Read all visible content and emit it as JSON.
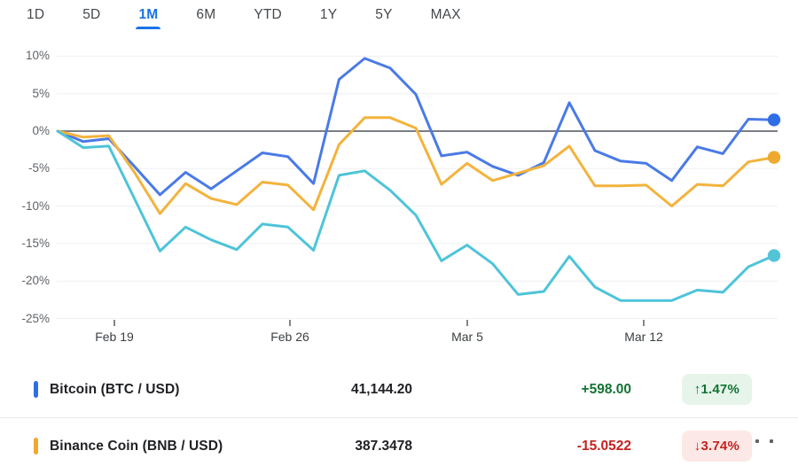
{
  "tabs": {
    "items": [
      {
        "label": "1D",
        "selected": false
      },
      {
        "label": "5D",
        "selected": false
      },
      {
        "label": "1M",
        "selected": true
      },
      {
        "label": "6M",
        "selected": false
      },
      {
        "label": "YTD",
        "selected": false
      },
      {
        "label": "1Y",
        "selected": false
      },
      {
        "label": "5Y",
        "selected": false
      },
      {
        "label": "MAX",
        "selected": false
      }
    ]
  },
  "chart": {
    "y_ticks": [
      "10%",
      "5%",
      "0%",
      "-5%",
      "-10%",
      "-15%",
      "-20%",
      "-25%"
    ],
    "x_ticks": [
      "Feb 19",
      "Feb 26",
      "Mar 5",
      "Mar 12"
    ]
  },
  "chart_data": {
    "type": "line",
    "unit": "percent change over 1M period",
    "title": "",
    "x_axis": {
      "tick_labels": [
        "Feb 19",
        "Feb 26",
        "Mar 5",
        "Mar 12"
      ]
    },
    "y_axis": {
      "tick_labels": [
        "10%",
        "5%",
        "0%",
        "-5%",
        "-10%",
        "-15%",
        "-20%",
        "-25%"
      ],
      "min": -25,
      "max": 10,
      "zero_line": true
    },
    "legend_position": "bottom-table",
    "grid": true,
    "series": [
      {
        "name": "Bitcoin (BTC / USD)",
        "color": "#4a7ae6",
        "dot_color": "#2e6fe6",
        "values": [
          0,
          -1.4,
          -1.0,
          -4.7,
          -8.5,
          -5.5,
          -7.7,
          -5.3,
          -2.9,
          -3.4,
          -7.0,
          6.9,
          9.7,
          8.4,
          4.9,
          -3.3,
          -2.8,
          -4.7,
          -5.9,
          -4.2,
          3.8,
          -2.6,
          -4.0,
          -4.3,
          -6.6,
          -2.1,
          -3.0,
          1.6,
          1.5
        ]
      },
      {
        "name": "Binance Coin (BNB / USD)",
        "color": "#f3b33d",
        "dot_color": "#efa92d",
        "values": [
          0,
          -0.8,
          -0.6,
          -5.5,
          -11.0,
          -7.0,
          -9.0,
          -9.8,
          -6.8,
          -7.2,
          -10.5,
          -1.8,
          1.8,
          1.8,
          0.4,
          -7.1,
          -4.3,
          -6.6,
          -5.6,
          -4.6,
          -2.0,
          -7.3,
          -7.3,
          -7.2,
          -10.0,
          -7.1,
          -7.3,
          -4.1,
          -3.5
        ]
      },
      {
        "name": "",
        "color": "#4ec4d9",
        "dot_color": "#53c4d8",
        "values": [
          0,
          -2.2,
          -2.0,
          -9.0,
          -16.0,
          -12.8,
          -14.5,
          -15.8,
          -12.4,
          -12.8,
          -15.9,
          -5.9,
          -5.3,
          -7.9,
          -11.2,
          -17.3,
          -15.2,
          -17.7,
          -21.8,
          -21.4,
          -16.7,
          -20.8,
          -22.6,
          -22.6,
          -22.6,
          -21.2,
          -21.5,
          -18.1,
          -16.6
        ]
      }
    ]
  },
  "legend": {
    "rows": [
      {
        "name": "Bitcoin (BTC / USD)",
        "value": "41,144.20",
        "change": "+598.00",
        "badge": "↑1.47%",
        "direction": "up",
        "color": "#2e6fe6"
      },
      {
        "name": "Binance Coin (BNB / USD)",
        "value": "387.3478",
        "change": "-15.0522",
        "badge": "↓3.74%",
        "direction": "down",
        "color": "#efa92d"
      }
    ]
  },
  "colors": {
    "accent_blue": "#1a73e8",
    "positive_text": "#137333",
    "positive_bg": "#e6f4ea",
    "negative_text": "#c5221f",
    "negative_bg": "#fce8e6",
    "zero_line": "#7a7e83",
    "gridline": "#edeff1"
  }
}
